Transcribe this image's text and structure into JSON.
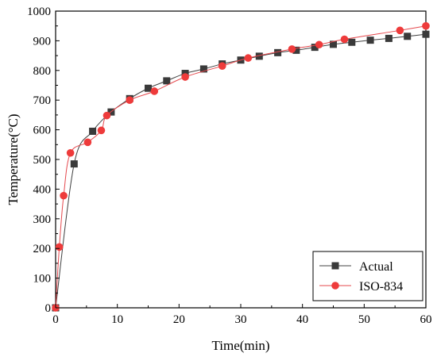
{
  "chart_data": {
    "type": "line",
    "xlabel": "Time(min)",
    "ylabel": "Temperature(°C)",
    "xlim": [
      0,
      60
    ],
    "ylim": [
      0,
      1000
    ],
    "xticks": [
      "0",
      "10",
      "20",
      "30",
      "40",
      "50",
      "60"
    ],
    "yticks": [
      "0",
      "100",
      "200",
      "300",
      "400",
      "500",
      "600",
      "700",
      "800",
      "900",
      "1000"
    ],
    "grid": false,
    "legend_position": "bottom-right",
    "series": [
      {
        "name": "Actual",
        "marker": "square",
        "color": "#404040",
        "markerColor": "#3a3a3a",
        "x": [
          0,
          3,
          6,
          9,
          12,
          15,
          18,
          21,
          24,
          27,
          30,
          33,
          36,
          39,
          42,
          45,
          48,
          51,
          54,
          57,
          60
        ],
        "y": [
          0,
          485,
          595,
          660,
          705,
          740,
          765,
          790,
          805,
          822,
          835,
          848,
          860,
          868,
          878,
          888,
          895,
          902,
          908,
          915,
          922
        ]
      },
      {
        "name": "ISO-834",
        "marker": "circle",
        "color": "#e5484d",
        "markerColor": "#ee3b3b",
        "x": [
          0,
          0.6,
          1.3,
          2.4,
          5.2,
          7.4,
          8.3,
          12,
          16,
          21,
          27,
          31.2,
          38.3,
          42.7,
          46.8,
          55.8,
          60
        ],
        "y": [
          0,
          205,
          378,
          522,
          558,
          598,
          648,
          700,
          730,
          778,
          815,
          842,
          872,
          887,
          905,
          935,
          950
        ]
      }
    ]
  }
}
